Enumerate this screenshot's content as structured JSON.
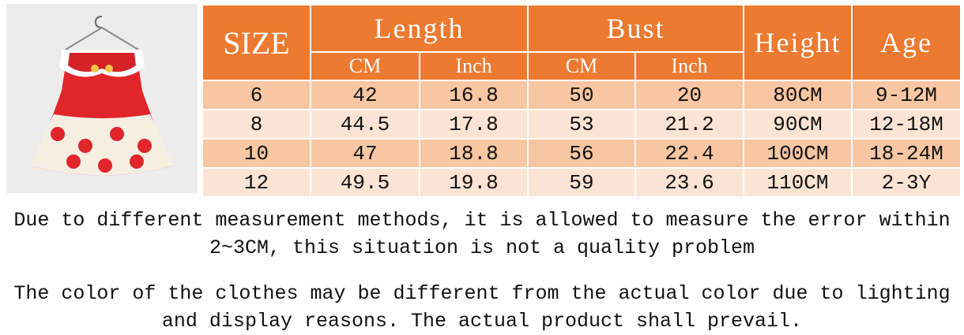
{
  "table": {
    "header": {
      "size": "SIZE",
      "length": "Length",
      "bust": "Bust",
      "height": "Height",
      "age": "Age",
      "length_cm": "CM",
      "length_inch": "Inch",
      "bust_cm": "CM",
      "bust_inch": "Inch"
    },
    "rows": [
      [
        "6",
        "42",
        "16.8",
        "50",
        "20",
        "80CM",
        "9-12M"
      ],
      [
        "8",
        "44.5",
        "17.8",
        "53",
        "21.2",
        "90CM",
        "12-18M"
      ],
      [
        "10",
        "47",
        "18.8",
        "56",
        "22.4",
        "100CM",
        "18-24M"
      ],
      [
        "12",
        "49.5",
        "19.8",
        "59",
        "23.6",
        "110CM",
        "2-3Y"
      ]
    ]
  },
  "notes": [
    {
      "lines": [
        "Due to different measurement methods, it is allowed to measure the error within",
        "2~3CM, this situation is not a quality problem"
      ]
    },
    {
      "lines": [
        "The color of the clothes may be different from the actual color due to lighting",
        "and display reasons. The actual product shall prevail."
      ]
    }
  ]
}
